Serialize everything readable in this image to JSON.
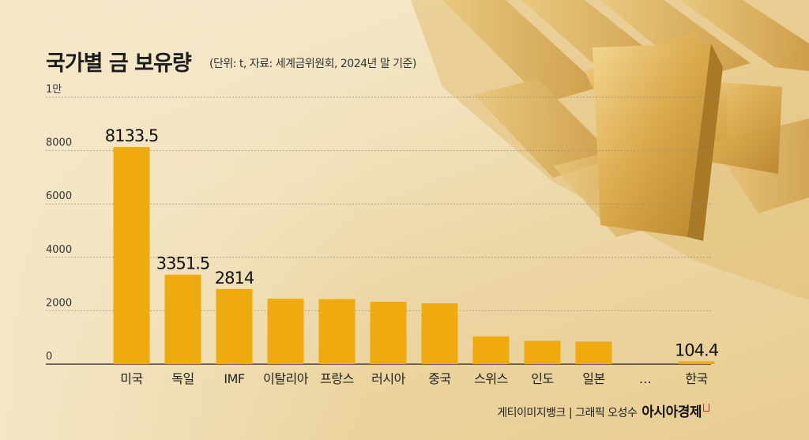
{
  "header": {
    "title": "국가별 금 보유량",
    "subtitle": "(단위: t, 자료: 세계금위원회, 2024년 말 기준)"
  },
  "colors": {
    "bar": "#efaa0f",
    "grid": "#9a8f7a",
    "axis": "#333333",
    "gold_deco": "#d9a84a"
  },
  "chart_data": {
    "type": "bar",
    "title": "국가별 금 보유량",
    "unit": "t",
    "categories": [
      "미국",
      "독일",
      "IMF",
      "이탈리아",
      "프랑스",
      "러시아",
      "중국",
      "스위스",
      "인도",
      "일본",
      "…",
      "한국"
    ],
    "values": [
      8133.5,
      3351.5,
      2814,
      2452,
      2437,
      2336,
      2280,
      1040,
      876,
      846,
      null,
      104.4
    ],
    "data_labels": [
      "8133.5",
      "3351.5",
      "2814",
      "",
      "",
      "",
      "",
      "",
      "",
      "",
      "",
      "104.4"
    ],
    "yticks": [
      0,
      2000,
      4000,
      6000,
      8000,
      10000
    ],
    "ytick_labels": [
      "0",
      "2000",
      "4000",
      "6000",
      "8000",
      "1만"
    ],
    "ylim": [
      0,
      10000
    ],
    "grid": true,
    "legend": "none"
  },
  "footer": {
    "credit": "게티이미지뱅크 | 그래픽 오성수",
    "brand": "아시아경제"
  }
}
